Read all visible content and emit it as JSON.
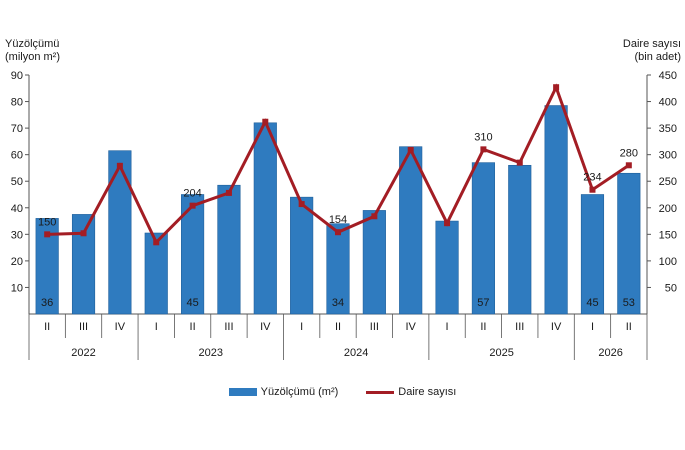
{
  "chart_data": {
    "type": "bar",
    "ylabel_left": [
      "Yüzölçümü",
      "(milyon m²)"
    ],
    "ylabel_right": [
      "Daire sayısı",
      "(bin adet)"
    ],
    "ylim_left": [
      0,
      90
    ],
    "ylim_right": [
      0,
      450
    ],
    "yticks_left": [
      "10",
      "20",
      "30",
      "40",
      "50",
      "60",
      "70",
      "80",
      "90"
    ],
    "yticks_right": [
      "50",
      "100",
      "150",
      "200",
      "250",
      "300",
      "350",
      "400",
      "450"
    ],
    "quarters": [
      "II",
      "III",
      "IV",
      "I",
      "II",
      "III",
      "IV",
      "I",
      "II",
      "III",
      "IV",
      "I",
      "II",
      "III",
      "IV",
      "I",
      "II"
    ],
    "years": [
      {
        "label": "2022",
        "count": 3
      },
      {
        "label": "2023",
        "count": 4
      },
      {
        "label": "2024",
        "count": 4
      },
      {
        "label": "2025",
        "count": 4
      },
      {
        "label": "2026",
        "count": 2
      }
    ],
    "series": [
      {
        "name": "Yüzölçümü (m²)",
        "type": "bar",
        "axis": "left",
        "values": [
          36,
          37.5,
          61.5,
          30.5,
          45,
          48.5,
          72,
          44,
          34,
          39,
          63,
          35,
          57,
          56,
          78.5,
          45,
          53
        ],
        "labels": [
          "36",
          "",
          "",
          "",
          "45",
          "",
          "",
          "",
          "34",
          "",
          "",
          "",
          "57",
          "",
          "",
          "45",
          "53"
        ]
      },
      {
        "name": "Daire sayısı",
        "type": "line",
        "axis": "right",
        "values": [
          150,
          152,
          279,
          135,
          204,
          228,
          362,
          207,
          154,
          184,
          309,
          171,
          310,
          285,
          427,
          234,
          280
        ],
        "labels": [
          "150",
          "",
          "",
          "",
          "204",
          "",
          "",
          "",
          "154",
          "",
          "",
          "",
          "310",
          "",
          "",
          "234",
          "280"
        ]
      }
    ],
    "legend_position": "bottom",
    "grid": false
  },
  "colors": {
    "bar": "#2f7bbf",
    "bar_edge": "#1f5f9a",
    "line": "#a31d24",
    "axis": "#555555"
  }
}
